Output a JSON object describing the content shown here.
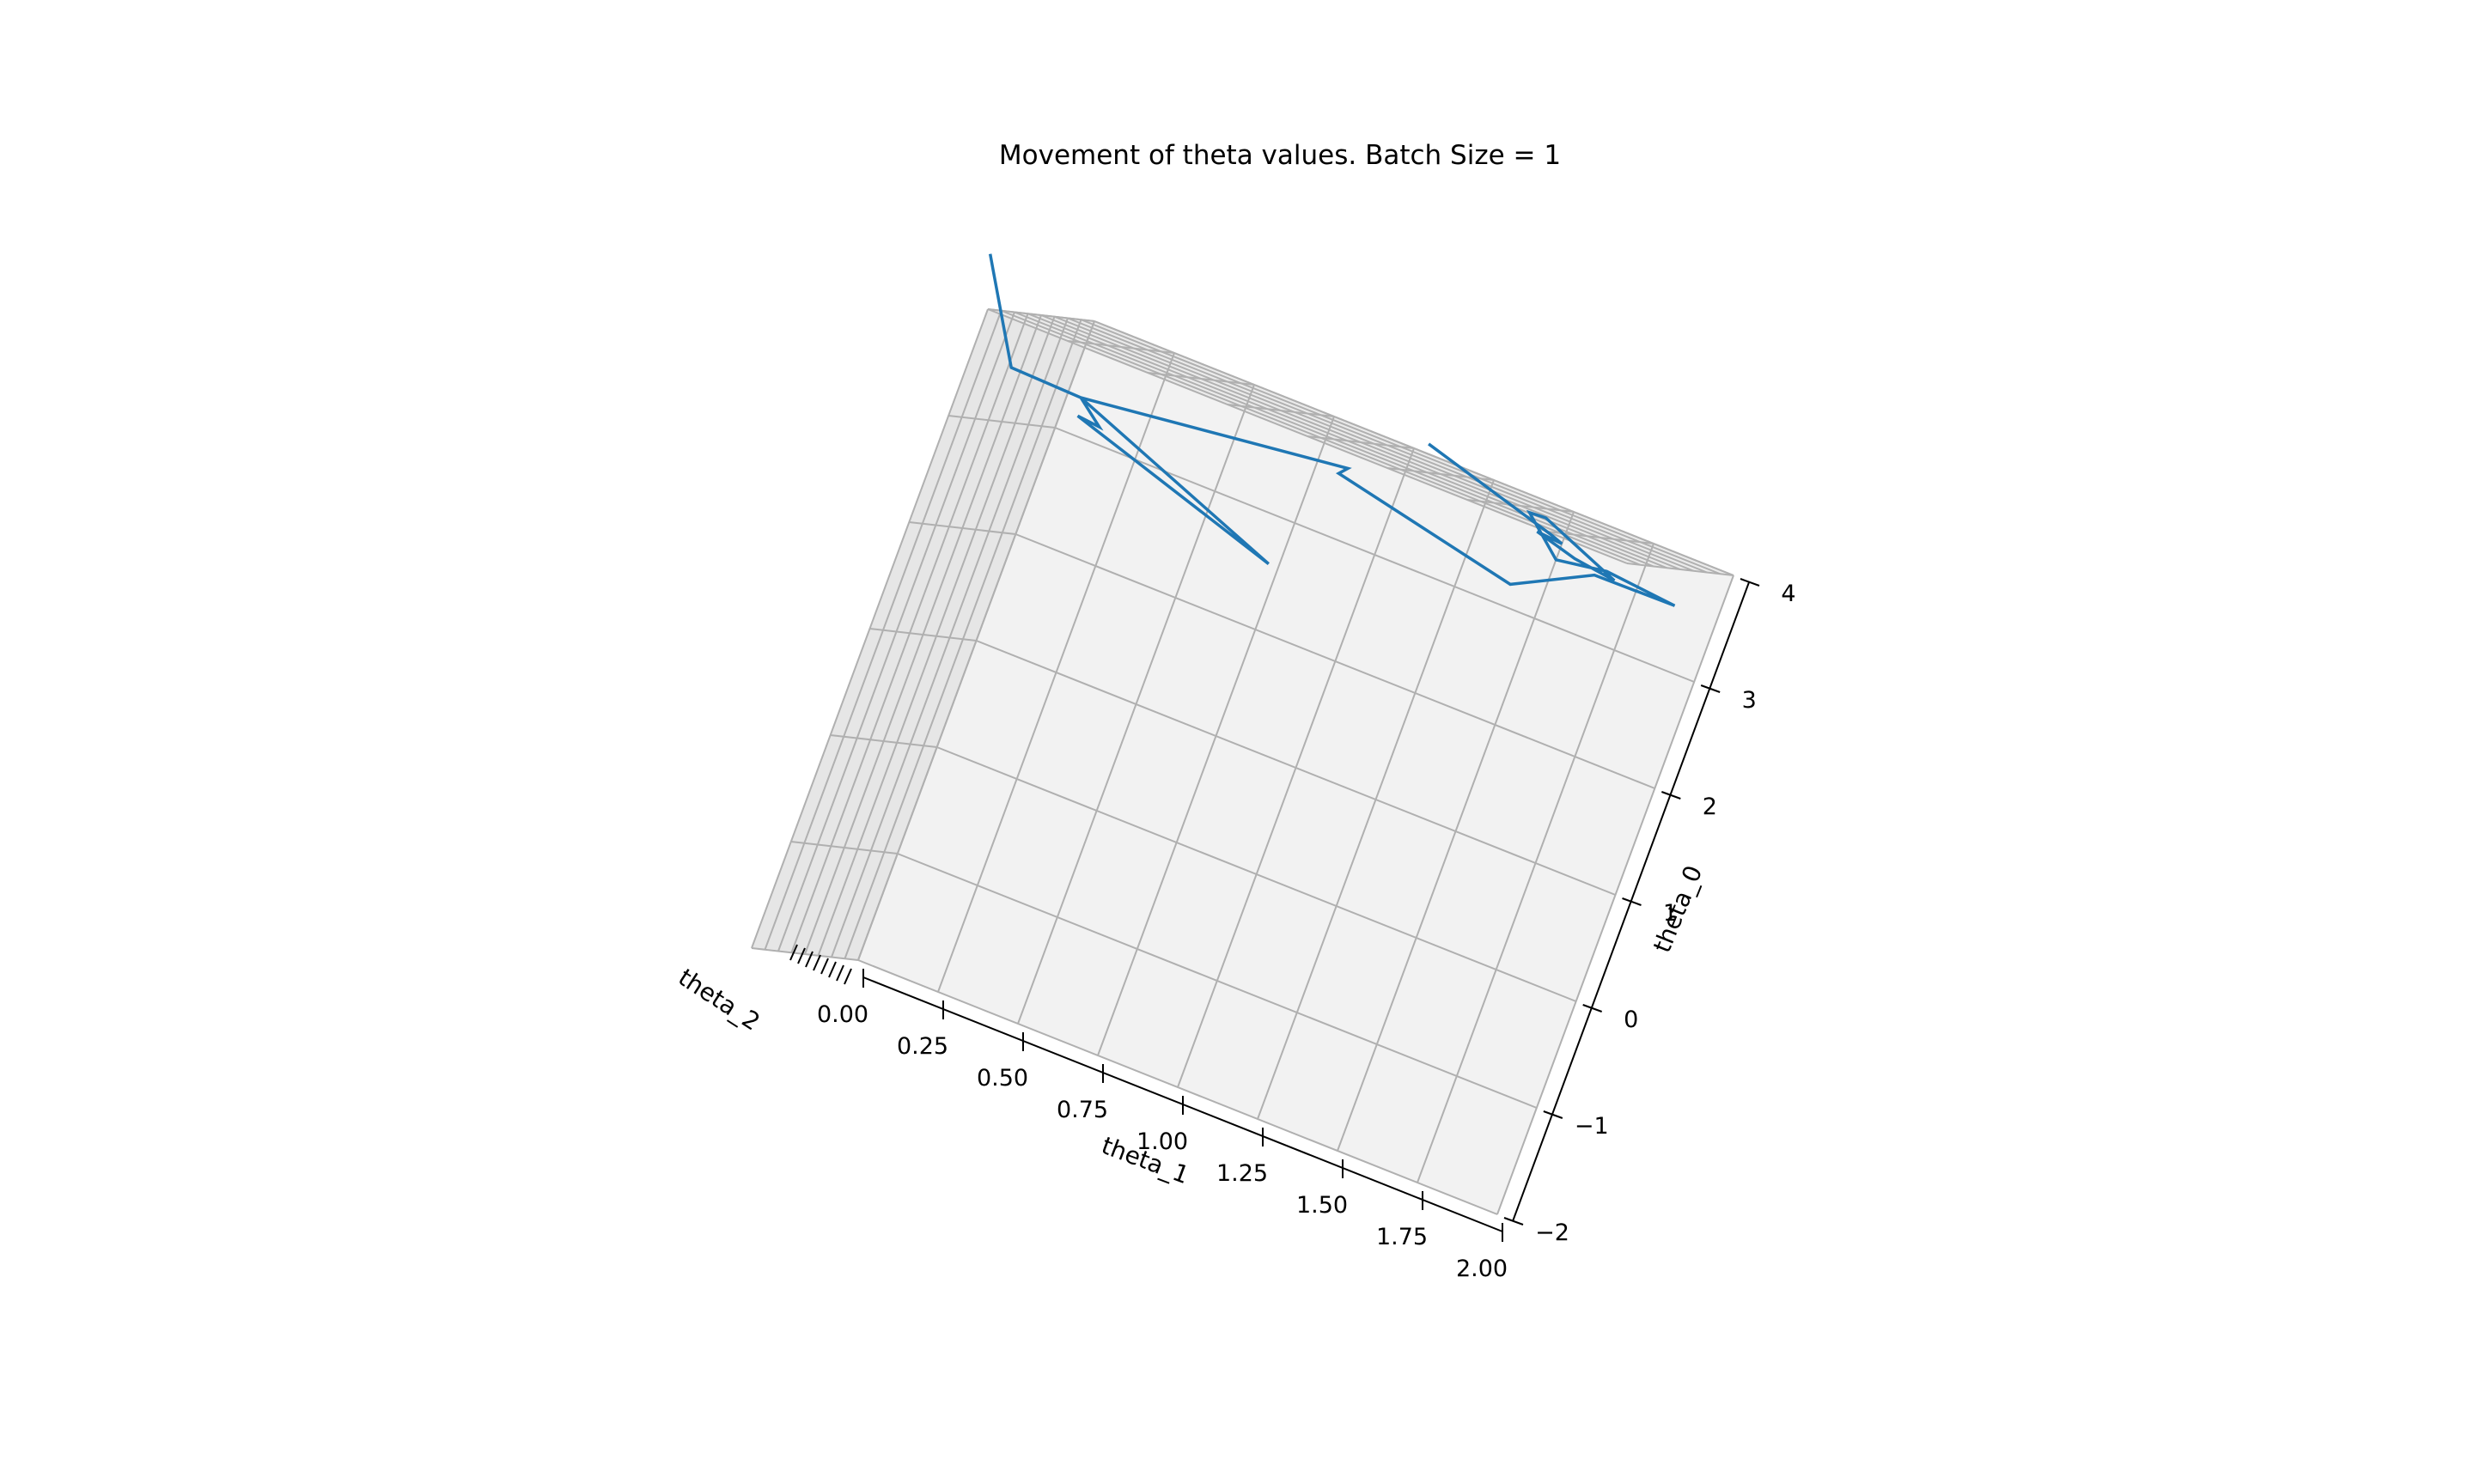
{
  "chart_data": {
    "type": "line3d",
    "title": "Movement of theta values. Batch Size = 1",
    "xlabel": "theta_1",
    "ylabel": "theta_2",
    "zlabel": "theta_0",
    "xticks": [
      "0.00",
      "0.25",
      "0.50",
      "0.75",
      "1.00",
      "1.25",
      "1.50",
      "1.75",
      "2.00"
    ],
    "zticks": [
      "−2",
      "−1",
      "0",
      "1",
      "2",
      "3",
      "4"
    ],
    "yticks_note": "theta_2 tick labels overlap and are illegible",
    "xlim": [
      0,
      2
    ],
    "zlim": [
      -2,
      4
    ],
    "grid": true,
    "series": [
      {
        "color": "#1f77b4",
        "points": [
          {
            "theta_1": -0.35,
            "theta_0": 4.2
          },
          {
            "theta_1": -0.33,
            "theta_0": 4.1
          },
          {
            "theta_1": -0.18,
            "theta_0": 3.35
          },
          {
            "theta_1": 0.04,
            "theta_0": 3.33
          },
          {
            "theta_1": 0.72,
            "theta_0": 2.58
          },
          {
            "theta_1": 0.05,
            "theta_0": 3.17
          },
          {
            "theta_1": 0.12,
            "theta_0": 3.15
          },
          {
            "theta_1": 0.04,
            "theta_0": 3.33
          },
          {
            "theta_1": 0.84,
            "theta_0": 3.62
          },
          {
            "theta_1": 0.82,
            "theta_0": 3.55
          },
          {
            "theta_1": 1.4,
            "theta_0": 3.2
          },
          {
            "theta_1": 1.62,
            "theta_0": 3.55
          },
          {
            "theta_1": 1.87,
            "theta_0": 3.56
          },
          {
            "theta_1": 1.65,
            "theta_0": 3.62
          },
          {
            "theta_1": 1.5,
            "theta_0": 3.55
          },
          {
            "theta_1": 1.38,
            "theta_0": 3.85
          },
          {
            "theta_1": 1.43,
            "theta_0": 3.86
          },
          {
            "theta_1": 1.68,
            "theta_0": 3.57
          },
          {
            "theta_1": 1.55,
            "theta_0": 3.62
          },
          {
            "theta_1": 1.42,
            "theta_0": 3.72
          },
          {
            "theta_1": 1.5,
            "theta_0": 3.7
          },
          {
            "theta_1": 1.46,
            "theta_0": 3.74
          },
          {
            "theta_1": 1.04,
            "theta_0": 4.08
          }
        ]
      }
    ]
  }
}
